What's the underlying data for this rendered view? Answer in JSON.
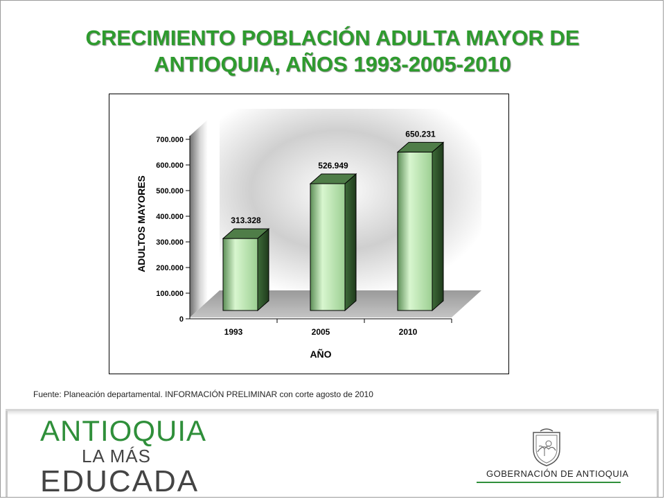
{
  "title": {
    "line1": "CRECIMIENTO POBLACIÓN ADULTA MAYOR DE",
    "line2": "ANTIOQUIA,  AÑOS 1993-2005-2010"
  },
  "chart_data": {
    "type": "bar",
    "categories": [
      "1993",
      "2005",
      "2010"
    ],
    "values": [
      313328,
      526949,
      650231
    ],
    "value_labels": [
      "313.328",
      "526.949",
      "650.231"
    ],
    "xlabel": "AÑO",
    "ylabel": "ADULTOS MAYORES",
    "ylim": [
      0,
      700000
    ],
    "yticks": [
      0,
      100000,
      200000,
      300000,
      400000,
      500000,
      600000,
      700000
    ],
    "ytick_labels": [
      "0",
      "100.000",
      "200.000",
      "300.000",
      "400.000",
      "500.000",
      "600.000",
      "700.000"
    ],
    "bar_color": "#a8e0a0",
    "grid": false
  },
  "source": "Fuente: Planeación departamental. INFORMACIÓN PRELIMINAR con corte agosto de 2010",
  "footer": {
    "logo_line1": "ANTIOQUIA",
    "logo_line2": "LA MÁS",
    "logo_line3": "EDUCADA",
    "government": "GOBERNACIÓN DE ANTIOQUIA",
    "brand_green": "#2f8f3a"
  }
}
